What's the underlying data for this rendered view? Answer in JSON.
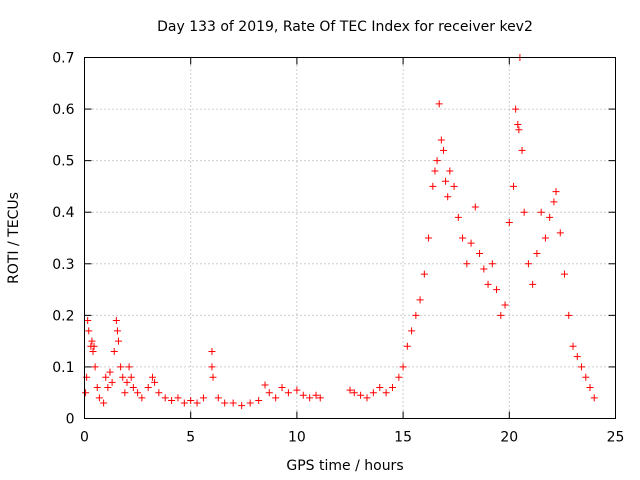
{
  "chart_data": {
    "type": "scatter",
    "title": "Day 133 of 2019, Rate Of TEC Index for receiver kev2",
    "xlabel": "GPS time / hours",
    "ylabel": "ROTI / TECUs",
    "xlim": [
      0,
      25
    ],
    "ylim": [
      0,
      0.7
    ],
    "xticks": [
      0,
      5,
      10,
      15,
      20,
      25
    ],
    "xtick_labels": [
      "0",
      "5",
      "10",
      "15",
      "20",
      "25"
    ],
    "yticks": [
      0,
      0.1,
      0.2,
      0.3,
      0.4,
      0.5,
      0.6,
      0.7
    ],
    "ytick_labels": [
      "0",
      "0.1",
      "0.2",
      "0.3",
      "0.4",
      "0.5",
      "0.6",
      "0.7"
    ],
    "grid": true,
    "marker": "+",
    "color": "#ff0000",
    "series": [
      {
        "name": "ROTI",
        "points": [
          [
            0.05,
            0.05
          ],
          [
            0.1,
            0.08
          ],
          [
            0.15,
            0.19
          ],
          [
            0.2,
            0.17
          ],
          [
            0.3,
            0.14
          ],
          [
            0.35,
            0.15
          ],
          [
            0.4,
            0.13
          ],
          [
            0.45,
            0.14
          ],
          [
            0.5,
            0.1
          ],
          [
            0.6,
            0.06
          ],
          [
            0.7,
            0.04
          ],
          [
            0.9,
            0.03
          ],
          [
            1.0,
            0.08
          ],
          [
            1.1,
            0.06
          ],
          [
            1.2,
            0.09
          ],
          [
            1.3,
            0.07
          ],
          [
            1.4,
            0.13
          ],
          [
            1.5,
            0.19
          ],
          [
            1.55,
            0.17
          ],
          [
            1.6,
            0.15
          ],
          [
            1.7,
            0.1
          ],
          [
            1.8,
            0.08
          ],
          [
            1.9,
            0.05
          ],
          [
            2.0,
            0.07
          ],
          [
            2.1,
            0.1
          ],
          [
            2.2,
            0.08
          ],
          [
            2.3,
            0.06
          ],
          [
            2.5,
            0.05
          ],
          [
            2.7,
            0.04
          ],
          [
            3.0,
            0.06
          ],
          [
            3.2,
            0.08
          ],
          [
            3.3,
            0.07
          ],
          [
            3.5,
            0.05
          ],
          [
            3.8,
            0.04
          ],
          [
            4.1,
            0.035
          ],
          [
            4.4,
            0.04
          ],
          [
            4.7,
            0.03
          ],
          [
            5.0,
            0.035
          ],
          [
            5.3,
            0.03
          ],
          [
            5.6,
            0.04
          ],
          [
            6.0,
            0.13
          ],
          [
            6.0,
            0.1
          ],
          [
            6.05,
            0.08
          ],
          [
            6.3,
            0.04
          ],
          [
            6.6,
            0.03
          ],
          [
            7.0,
            0.03
          ],
          [
            7.4,
            0.025
          ],
          [
            7.8,
            0.03
          ],
          [
            8.2,
            0.035
          ],
          [
            8.5,
            0.065
          ],
          [
            8.7,
            0.05
          ],
          [
            9.0,
            0.04
          ],
          [
            9.3,
            0.06
          ],
          [
            9.6,
            0.05
          ],
          [
            10.0,
            0.055
          ],
          [
            10.3,
            0.045
          ],
          [
            10.6,
            0.04
          ],
          [
            10.9,
            0.045
          ],
          [
            11.1,
            0.04
          ],
          [
            12.5,
            0.055
          ],
          [
            12.7,
            0.05
          ],
          [
            13.0,
            0.045
          ],
          [
            13.3,
            0.04
          ],
          [
            13.6,
            0.05
          ],
          [
            13.9,
            0.06
          ],
          [
            14.2,
            0.05
          ],
          [
            14.5,
            0.06
          ],
          [
            14.8,
            0.08
          ],
          [
            15.0,
            0.1
          ],
          [
            15.2,
            0.14
          ],
          [
            15.4,
            0.17
          ],
          [
            15.6,
            0.2
          ],
          [
            15.8,
            0.23
          ],
          [
            16.0,
            0.28
          ],
          [
            16.2,
            0.35
          ],
          [
            16.4,
            0.45
          ],
          [
            16.5,
            0.48
          ],
          [
            16.6,
            0.5
          ],
          [
            16.7,
            0.61
          ],
          [
            16.8,
            0.54
          ],
          [
            16.9,
            0.52
          ],
          [
            17.0,
            0.46
          ],
          [
            17.1,
            0.43
          ],
          [
            17.2,
            0.48
          ],
          [
            17.4,
            0.45
          ],
          [
            17.6,
            0.39
          ],
          [
            17.8,
            0.35
          ],
          [
            18.0,
            0.3
          ],
          [
            18.2,
            0.34
          ],
          [
            18.4,
            0.41
          ],
          [
            18.6,
            0.32
          ],
          [
            18.8,
            0.29
          ],
          [
            19.0,
            0.26
          ],
          [
            19.2,
            0.3
          ],
          [
            19.4,
            0.25
          ],
          [
            19.6,
            0.2
          ],
          [
            19.8,
            0.22
          ],
          [
            20.0,
            0.38
          ],
          [
            20.2,
            0.45
          ],
          [
            20.3,
            0.6
          ],
          [
            20.4,
            0.57
          ],
          [
            20.45,
            0.56
          ],
          [
            20.5,
            0.7
          ],
          [
            20.6,
            0.52
          ],
          [
            20.7,
            0.4
          ],
          [
            20.9,
            0.3
          ],
          [
            21.1,
            0.26
          ],
          [
            21.3,
            0.32
          ],
          [
            21.5,
            0.4
          ],
          [
            21.7,
            0.35
          ],
          [
            21.9,
            0.39
          ],
          [
            22.1,
            0.42
          ],
          [
            22.2,
            0.44
          ],
          [
            22.4,
            0.36
          ],
          [
            22.6,
            0.28
          ],
          [
            22.8,
            0.2
          ],
          [
            23.0,
            0.14
          ],
          [
            23.2,
            0.12
          ],
          [
            23.4,
            0.1
          ],
          [
            23.6,
            0.08
          ],
          [
            23.8,
            0.06
          ],
          [
            24.0,
            0.04
          ]
        ]
      }
    ]
  }
}
